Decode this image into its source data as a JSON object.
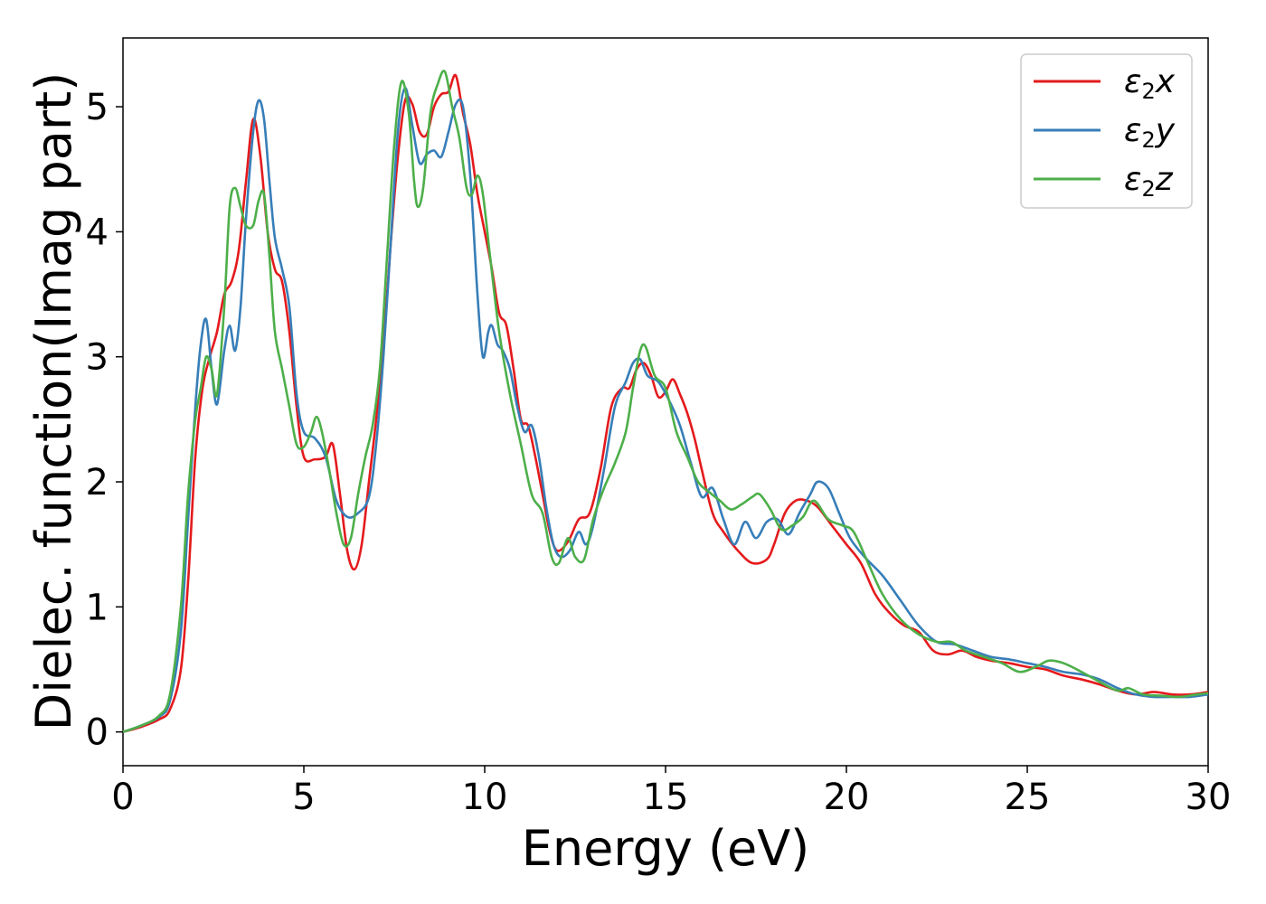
{
  "chart_data": {
    "type": "line",
    "xlabel": "Energy (eV)",
    "ylabel": "Dielec. function(Imag part)",
    "xlim": [
      0,
      30
    ],
    "ylim": [
      -0.27,
      5.55
    ],
    "xticks": [
      0,
      5,
      10,
      15,
      20,
      25,
      30
    ],
    "yticks": [
      0,
      1,
      2,
      3,
      4,
      5
    ],
    "grid": false,
    "legend_position": "top-right",
    "series": [
      {
        "name": "ε₂x",
        "legend_base": "ε",
        "legend_sub": "2",
        "legend_tail": "x",
        "color": "#e41a1c",
        "x": [
          0,
          0.5,
          1.0,
          1.3,
          1.6,
          1.8,
          2.0,
          2.2,
          2.4,
          2.6,
          2.8,
          3.0,
          3.2,
          3.4,
          3.6,
          3.8,
          4.0,
          4.2,
          4.4,
          4.6,
          4.8,
          5.0,
          5.3,
          5.6,
          5.8,
          6.0,
          6.2,
          6.4,
          6.6,
          6.8,
          7.0,
          7.2,
          7.4,
          7.6,
          7.8,
          8.0,
          8.2,
          8.4,
          8.6,
          8.8,
          9.0,
          9.2,
          9.4,
          9.6,
          9.8,
          10.0,
          10.2,
          10.4,
          10.6,
          10.8,
          11.0,
          11.2,
          11.4,
          11.6,
          11.8,
          12.0,
          12.3,
          12.6,
          12.9,
          13.2,
          13.5,
          13.8,
          14.0,
          14.2,
          14.4,
          14.6,
          14.8,
          15.0,
          15.2,
          15.4,
          15.6,
          15.8,
          16.0,
          16.3,
          16.6,
          17.0,
          17.4,
          17.8,
          18.0,
          18.3,
          18.6,
          18.9,
          19.2,
          19.6,
          20.0,
          20.4,
          20.8,
          21.2,
          21.6,
          22.0,
          22.4,
          22.8,
          23.2,
          23.6,
          24.0,
          24.5,
          25.0,
          25.5,
          26.0,
          26.5,
          27.0,
          27.5,
          28.0,
          28.5,
          29.0,
          29.5,
          30.0
        ],
        "values": [
          0.0,
          0.04,
          0.1,
          0.18,
          0.5,
          1.2,
          2.2,
          2.75,
          3.0,
          3.2,
          3.5,
          3.6,
          3.85,
          4.4,
          4.9,
          4.6,
          4.0,
          3.7,
          3.6,
          3.2,
          2.6,
          2.2,
          2.18,
          2.2,
          2.3,
          1.9,
          1.45,
          1.3,
          1.5,
          2.0,
          2.5,
          3.1,
          3.9,
          4.6,
          5.05,
          5.02,
          4.8,
          4.78,
          5.0,
          5.1,
          5.12,
          5.25,
          4.95,
          4.7,
          4.3,
          4.0,
          3.7,
          3.35,
          3.25,
          2.9,
          2.5,
          2.45,
          2.2,
          1.9,
          1.6,
          1.45,
          1.52,
          1.7,
          1.75,
          2.1,
          2.6,
          2.75,
          2.75,
          2.9,
          2.95,
          2.85,
          2.68,
          2.72,
          2.82,
          2.7,
          2.55,
          2.35,
          2.1,
          1.75,
          1.6,
          1.45,
          1.35,
          1.38,
          1.5,
          1.75,
          1.85,
          1.85,
          1.8,
          1.65,
          1.5,
          1.35,
          1.1,
          0.95,
          0.85,
          0.8,
          0.65,
          0.62,
          0.65,
          0.6,
          0.57,
          0.55,
          0.52,
          0.5,
          0.45,
          0.42,
          0.38,
          0.33,
          0.3,
          0.32,
          0.3,
          0.3,
          0.32
        ]
      },
      {
        "name": "ε₂y",
        "legend_base": "ε",
        "legend_sub": "2",
        "legend_tail": "y",
        "color": "#377eb8",
        "x": [
          0,
          0.5,
          1.0,
          1.3,
          1.6,
          1.8,
          2.0,
          2.15,
          2.3,
          2.45,
          2.6,
          2.8,
          2.95,
          3.1,
          3.25,
          3.4,
          3.6,
          3.75,
          3.9,
          4.05,
          4.2,
          4.4,
          4.6,
          4.8,
          5.0,
          5.3,
          5.6,
          5.9,
          6.2,
          6.5,
          6.8,
          7.0,
          7.2,
          7.4,
          7.6,
          7.8,
          8.0,
          8.2,
          8.4,
          8.6,
          8.8,
          9.0,
          9.2,
          9.4,
          9.6,
          9.8,
          9.95,
          10.1,
          10.2,
          10.35,
          10.5,
          10.7,
          10.9,
          11.1,
          11.3,
          11.5,
          11.7,
          11.9,
          12.1,
          12.35,
          12.6,
          12.8,
          13.0,
          13.3,
          13.6,
          13.9,
          14.1,
          14.3,
          14.5,
          14.8,
          15.1,
          15.4,
          15.7,
          16.0,
          16.3,
          16.6,
          16.9,
          17.2,
          17.5,
          17.8,
          18.1,
          18.4,
          18.7,
          19.0,
          19.2,
          19.5,
          19.8,
          20.1,
          20.5,
          21.0,
          21.5,
          22.0,
          22.5,
          23.0,
          23.5,
          24.0,
          24.5,
          25.0,
          25.5,
          26.0,
          26.5,
          27.0,
          27.5,
          28.0,
          28.5,
          29.0,
          29.5,
          30.0
        ],
        "values": [
          0.0,
          0.05,
          0.12,
          0.25,
          0.8,
          1.7,
          2.6,
          3.1,
          3.3,
          2.9,
          2.62,
          3.05,
          3.25,
          3.05,
          3.4,
          4.1,
          4.8,
          5.05,
          4.9,
          4.4,
          3.95,
          3.7,
          3.4,
          2.7,
          2.4,
          2.35,
          2.2,
          1.85,
          1.72,
          1.75,
          1.88,
          2.3,
          3.0,
          3.9,
          4.8,
          5.15,
          4.85,
          4.55,
          4.62,
          4.65,
          4.6,
          4.8,
          5.02,
          5.0,
          4.45,
          3.5,
          3.0,
          3.2,
          3.25,
          3.1,
          3.05,
          2.9,
          2.6,
          2.4,
          2.45,
          2.2,
          1.8,
          1.5,
          1.4,
          1.45,
          1.6,
          1.5,
          1.65,
          2.1,
          2.6,
          2.8,
          2.95,
          2.98,
          2.85,
          2.8,
          2.65,
          2.45,
          2.15,
          1.88,
          1.95,
          1.7,
          1.5,
          1.68,
          1.55,
          1.68,
          1.7,
          1.58,
          1.75,
          1.9,
          2.0,
          1.95,
          1.75,
          1.55,
          1.4,
          1.25,
          1.05,
          0.85,
          0.72,
          0.7,
          0.65,
          0.6,
          0.58,
          0.55,
          0.52,
          0.48,
          0.46,
          0.42,
          0.35,
          0.3,
          0.28,
          0.28,
          0.28,
          0.3
        ]
      },
      {
        "name": "ε₂z",
        "legend_base": "ε",
        "legend_sub": "2",
        "legend_tail": "z",
        "color": "#4daf4a",
        "x": [
          0,
          0.5,
          1.0,
          1.3,
          1.6,
          1.8,
          2.0,
          2.15,
          2.3,
          2.45,
          2.6,
          2.8,
          2.95,
          3.1,
          3.25,
          3.4,
          3.6,
          3.75,
          3.9,
          4.05,
          4.2,
          4.4,
          4.6,
          4.8,
          5.0,
          5.2,
          5.35,
          5.5,
          5.7,
          5.9,
          6.1,
          6.3,
          6.5,
          6.7,
          6.9,
          7.1,
          7.3,
          7.5,
          7.7,
          7.9,
          8.05,
          8.15,
          8.3,
          8.5,
          8.7,
          8.9,
          9.1,
          9.3,
          9.5,
          9.65,
          9.8,
          9.95,
          10.15,
          10.4,
          10.7,
          11.0,
          11.3,
          11.6,
          11.85,
          12.05,
          12.3,
          12.5,
          12.75,
          13.0,
          13.3,
          13.6,
          13.9,
          14.1,
          14.3,
          14.45,
          14.7,
          15.0,
          15.3,
          15.6,
          15.9,
          16.2,
          16.5,
          16.8,
          17.1,
          17.4,
          17.6,
          17.9,
          18.2,
          18.5,
          18.8,
          19.1,
          19.5,
          19.9,
          20.2,
          20.6,
          21.0,
          21.5,
          22.0,
          22.5,
          22.9,
          23.3,
          23.8,
          24.3,
          24.8,
          25.3,
          25.6,
          26.0,
          26.5,
          27.0,
          27.5,
          27.8,
          28.2,
          28.7,
          29.2,
          29.7,
          30.0
        ],
        "values": [
          0.0,
          0.05,
          0.13,
          0.3,
          1.0,
          1.9,
          2.5,
          2.75,
          3.0,
          2.9,
          2.7,
          3.4,
          4.2,
          4.35,
          4.2,
          4.05,
          4.05,
          4.25,
          4.3,
          3.8,
          3.2,
          2.9,
          2.6,
          2.3,
          2.28,
          2.4,
          2.52,
          2.4,
          2.1,
          1.75,
          1.5,
          1.55,
          1.9,
          2.2,
          2.45,
          2.9,
          3.8,
          4.7,
          5.2,
          4.95,
          4.4,
          4.2,
          4.35,
          4.95,
          5.18,
          5.28,
          5.0,
          4.75,
          4.35,
          4.3,
          4.45,
          4.3,
          3.8,
          3.2,
          2.7,
          2.3,
          1.9,
          1.75,
          1.4,
          1.35,
          1.55,
          1.4,
          1.38,
          1.7,
          1.95,
          2.15,
          2.4,
          2.75,
          3.05,
          3.08,
          2.85,
          2.75,
          2.4,
          2.2,
          2.0,
          1.92,
          1.85,
          1.78,
          1.82,
          1.88,
          1.9,
          1.78,
          1.62,
          1.65,
          1.72,
          1.85,
          1.7,
          1.65,
          1.6,
          1.35,
          1.1,
          0.9,
          0.78,
          0.72,
          0.72,
          0.65,
          0.6,
          0.55,
          0.48,
          0.53,
          0.57,
          0.55,
          0.48,
          0.4,
          0.33,
          0.35,
          0.3,
          0.29,
          0.28,
          0.3,
          0.31
        ]
      }
    ]
  }
}
